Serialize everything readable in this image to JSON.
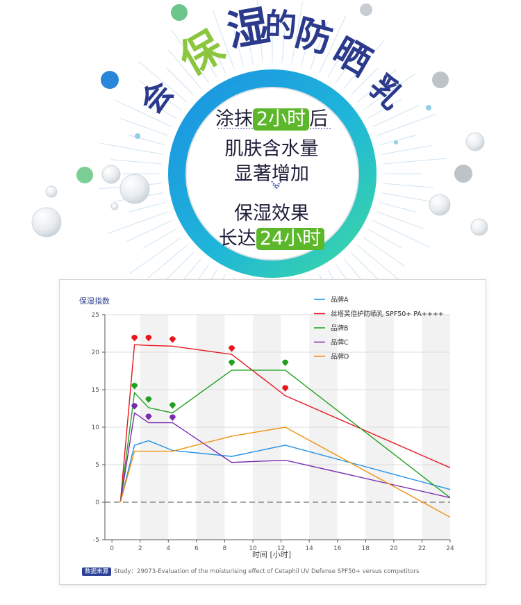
{
  "headline": {
    "chars": [
      "会",
      "保",
      "湿",
      "的",
      "防",
      "晒",
      "乳"
    ],
    "colors": [
      "#2b3a8c",
      "#8cc63f",
      "#2b3a8c",
      "#2b3a8c",
      "#2b3a8c",
      "#2b3a8c",
      "#2b3a8c"
    ]
  },
  "circle_text": {
    "l1_pre": "涂抹",
    "l1_hl": "2小时",
    "l1_post": "后",
    "l2": "肌肤含水量",
    "l3": "显著增加",
    "l4": "保湿效果",
    "l5_pre": "长达",
    "l5_hl": "24小时"
  },
  "source": {
    "tag": "数据来源",
    "text": "Study：29073-Evaluation of the moisturising effect of Cetaphil UV Defense SPF50+ versus competitors"
  },
  "chart_data": {
    "type": "line",
    "ylabel": "保湿指数",
    "xlabel": "时间 [小时]",
    "xlim": [
      -0.5,
      24
    ],
    "ylim": [
      -5,
      25
    ],
    "xticks": [
      "0",
      "2",
      "4",
      "6",
      "8",
      "10",
      "12",
      "14",
      "16",
      "18",
      "20",
      "22",
      "24"
    ],
    "yticks": [
      "-5",
      "0",
      "5",
      "10",
      "15",
      "20",
      "25"
    ],
    "legend_position": "top-right",
    "series": [
      {
        "name": "品牌A",
        "color": "#1e90e6",
        "x": [
          0.6,
          1.6,
          2.6,
          4.3,
          8.5,
          12.3,
          24
        ],
        "y": [
          0,
          7.6,
          8.2,
          6.9,
          6.1,
          7.6,
          1.7
        ]
      },
      {
        "name": "丝塔芙倍护防晒乳 SPF50+ PA++++",
        "color": "#e8151b",
        "x": [
          0.6,
          1.6,
          2.6,
          4.3,
          8.5,
          12.3,
          24
        ],
        "y": [
          0,
          21.0,
          20.9,
          20.8,
          19.7,
          14.2,
          4.6
        ]
      },
      {
        "name": "品牌B",
        "color": "#1fa01f",
        "x": [
          0.6,
          1.6,
          2.6,
          4.3,
          8.5,
          12.3,
          24
        ],
        "y": [
          0,
          14.6,
          12.6,
          11.9,
          17.6,
          17.6,
          0.6
        ]
      },
      {
        "name": "品牌C",
        "color": "#7a2bb0",
        "x": [
          0.6,
          1.6,
          2.6,
          4.3,
          8.5,
          12.3,
          24
        ],
        "y": [
          0,
          11.9,
          10.6,
          10.6,
          5.3,
          5.6,
          0.6
        ]
      },
      {
        "name": "品牌D",
        "color": "#f0920f",
        "x": [
          0.6,
          1.6,
          2.6,
          4.3,
          8.5,
          12.3,
          24
        ],
        "y": [
          0,
          6.8,
          6.8,
          6.8,
          8.8,
          10.0,
          -2.0
        ]
      }
    ],
    "significance_markers": [
      {
        "series": "丝塔芙倍护防晒乳 SPF50+ PA++++",
        "x": [
          1.6,
          2.6,
          4.3,
          8.5,
          12.3
        ],
        "y": [
          21.9,
          21.9,
          21.7,
          20.5,
          15.2
        ]
      },
      {
        "series": "品牌B",
        "x": [
          1.6,
          2.6,
          4.3,
          8.5,
          12.3
        ],
        "y": [
          15.5,
          13.7,
          12.9,
          18.6,
          18.6
        ]
      },
      {
        "series": "品牌C",
        "x": [
          1.6,
          2.6,
          4.3
        ],
        "y": [
          12.8,
          11.4,
          11.3
        ]
      }
    ]
  }
}
